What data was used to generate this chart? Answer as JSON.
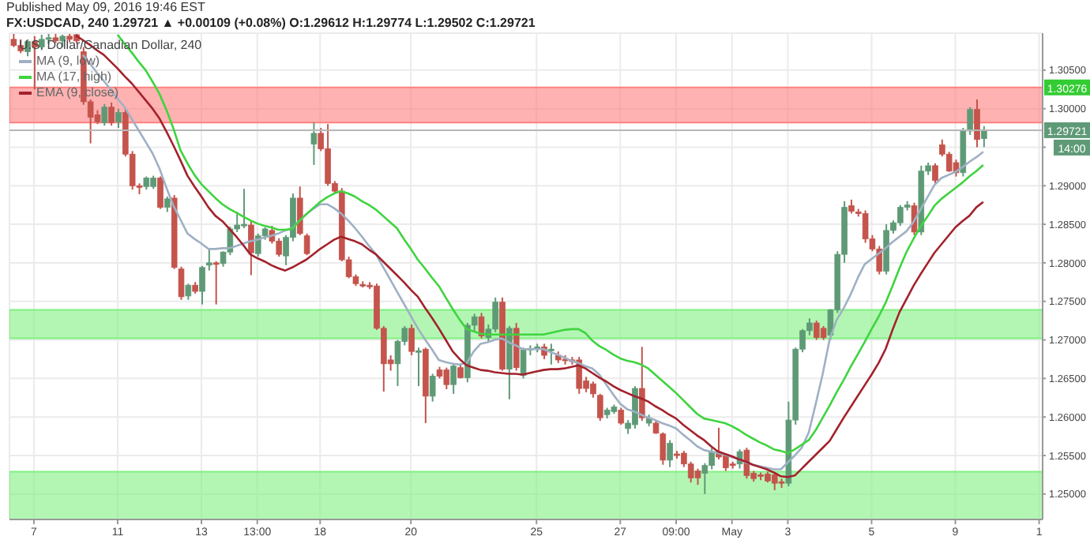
{
  "chart_data": {
    "type": "candlestick",
    "title": "FX:USDCAD, 240 1.29721 ▲ +0.00109 (+0.08%) O:1.29612 H:1.29774 L:1.29502 C:1.29721",
    "legend_title": "U.S. Dollar/Canadian Dollar, 240",
    "annotations": [
      "Published May 09, 2016 19:46 EST",
      "14:00"
    ],
    "categories": [
      null,
      null,
      null,
      "7",
      null,
      null,
      null,
      null,
      null,
      null,
      null,
      null,
      null,
      null,
      null,
      "11",
      null,
      null,
      null,
      null,
      null,
      null,
      null,
      null,
      null,
      null,
      null,
      "13",
      null,
      null,
      null,
      null,
      null,
      null,
      null,
      "13:00",
      null,
      null,
      null,
      null,
      null,
      null,
      null,
      null,
      "18",
      null,
      null,
      null,
      null,
      null,
      null,
      null,
      null,
      null,
      null,
      null,
      null,
      "20",
      null,
      null,
      null,
      null,
      null,
      null,
      null,
      null,
      null,
      null,
      null,
      null,
      null,
      null,
      null,
      null,
      null,
      "25",
      null,
      null,
      null,
      null,
      null,
      null,
      null,
      null,
      null,
      null,
      null,
      "27",
      null,
      null,
      null,
      null,
      null,
      null,
      null,
      "09:00",
      null,
      null,
      null,
      null,
      null,
      null,
      null,
      "May",
      null,
      null,
      null,
      null,
      null,
      null,
      null,
      "3",
      null,
      null,
      null,
      null,
      null,
      null,
      null,
      null,
      null,
      null,
      null,
      "5",
      null,
      null,
      null,
      null,
      null,
      null,
      null,
      null,
      null,
      null,
      null,
      "9",
      null,
      null,
      null,
      null,
      null,
      null,
      null,
      null,
      null,
      null,
      null,
      "1"
    ],
    "ohlc": [
      [
        1.309,
        1.3097,
        1.308,
        1.3082
      ],
      [
        1.3082,
        1.309,
        1.3072,
        1.3075
      ],
      [
        1.3074,
        1.309,
        1.3068,
        1.3087
      ],
      [
        1.3087,
        1.3094,
        1.3025,
        1.308
      ],
      [
        1.308,
        1.3096,
        1.3076,
        1.309
      ],
      [
        1.309,
        1.3097,
        1.3084,
        1.3092
      ],
      [
        1.3092,
        1.3097,
        1.3085,
        1.3088
      ],
      [
        1.3088,
        1.3096,
        1.308,
        1.3094
      ],
      [
        1.3094,
        1.3097,
        1.3086,
        1.309
      ],
      [
        1.3096,
        1.3097,
        1.3085,
        1.3088
      ],
      [
        1.3074,
        1.308,
        1.3005,
        1.3009
      ],
      [
        1.3009,
        1.3012,
        1.2955,
        1.2989
      ],
      [
        1.2992,
        1.2998,
        1.298,
        1.2983
      ],
      [
        1.2982,
        1.3006,
        1.2978,
        1.3002
      ],
      [
        1.3002,
        1.3008,
        1.2978,
        1.2982
      ],
      [
        1.2983,
        1.3,
        1.2975,
        1.2995
      ],
      [
        1.2995,
        1.3,
        1.2938,
        1.2941
      ],
      [
        1.2941,
        1.2945,
        1.2895,
        1.29
      ],
      [
        1.29,
        1.2903,
        1.2889,
        1.2899
      ],
      [
        1.2899,
        1.2912,
        1.2895,
        1.291
      ],
      [
        1.2899,
        1.2913,
        1.2896,
        1.291
      ],
      [
        1.291,
        1.2912,
        1.287,
        1.2872
      ],
      [
        1.2872,
        1.2886,
        1.2866,
        1.2883
      ],
      [
        1.2884,
        1.2888,
        1.2792,
        1.2794
      ],
      [
        1.2792,
        1.2795,
        1.2752,
        1.2756
      ],
      [
        1.2757,
        1.2773,
        1.2752,
        1.2771
      ],
      [
        1.2771,
        1.2775,
        1.276,
        1.2763
      ],
      [
        1.2763,
        1.2796,
        1.2746,
        1.2794
      ],
      [
        1.2797,
        1.2818,
        1.279,
        1.28
      ],
      [
        1.28,
        1.2802,
        1.2746,
        1.2799
      ],
      [
        1.2799,
        1.2815,
        1.2795,
        1.2814
      ],
      [
        1.2814,
        1.2847,
        1.281,
        1.2844
      ],
      [
        1.2844,
        1.2866,
        1.284,
        1.2849
      ],
      [
        1.2849,
        1.2896,
        1.2845,
        1.285
      ],
      [
        1.2849,
        1.2855,
        1.2784,
        1.2813
      ],
      [
        1.2812,
        1.2838,
        1.2808,
        1.2835
      ],
      [
        1.2835,
        1.2846,
        1.283,
        1.2844
      ],
      [
        1.2842,
        1.2848,
        1.2825,
        1.2828
      ],
      [
        1.2828,
        1.2832,
        1.2808,
        1.2811
      ],
      [
        1.2809,
        1.2836,
        1.2797,
        1.2833
      ],
      [
        1.2833,
        1.289,
        1.2828,
        1.2884
      ],
      [
        1.2884,
        1.2899,
        1.2836,
        1.2838
      ],
      [
        1.2835,
        1.2838,
        1.281,
        1.2812
      ],
      [
        1.2954,
        1.2982,
        1.2927,
        1.2968
      ],
      [
        1.2968,
        1.2975,
        1.2945,
        1.2948
      ],
      [
        1.2948,
        1.298,
        1.29,
        1.2903
      ],
      [
        1.2903,
        1.2906,
        1.289,
        1.2893
      ],
      [
        1.2893,
        1.2897,
        1.2802,
        1.2804
      ],
      [
        1.2804,
        1.2808,
        1.278,
        1.2782
      ],
      [
        1.2782,
        1.2785,
        1.277,
        1.2773
      ],
      [
        1.2772,
        1.2776,
        1.2768,
        1.2771
      ],
      [
        1.2771,
        1.2775,
        1.2766,
        1.277
      ],
      [
        1.277,
        1.2773,
        1.2713,
        1.2715
      ],
      [
        1.2715,
        1.2718,
        1.2633,
        1.2669
      ],
      [
        1.2674,
        1.268,
        1.266,
        1.2669
      ],
      [
        1.2669,
        1.27,
        1.264,
        1.2698
      ],
      [
        1.2698,
        1.2718,
        1.2693,
        1.2715
      ],
      [
        1.2715,
        1.272,
        1.268,
        1.2685
      ],
      [
        1.2685,
        1.269,
        1.264,
        1.2686
      ],
      [
        1.2688,
        1.269,
        1.2592,
        1.2627
      ],
      [
        1.2627,
        1.2656,
        1.262,
        1.2653
      ],
      [
        1.2661,
        1.2665,
        1.265,
        1.2653
      ],
      [
        1.2661,
        1.2664,
        1.2636,
        1.2642
      ],
      [
        1.2642,
        1.267,
        1.263,
        1.2666
      ],
      [
        1.2664,
        1.2668,
        1.265,
        1.2651
      ],
      [
        1.2651,
        1.2722,
        1.2645,
        1.2719
      ],
      [
        1.2719,
        1.2734,
        1.2712,
        1.273
      ],
      [
        1.273,
        1.2735,
        1.2702,
        1.2705
      ],
      [
        1.2703,
        1.272,
        1.2698,
        1.2714
      ],
      [
        1.2714,
        1.2755,
        1.271,
        1.2749
      ],
      [
        1.2749,
        1.2755,
        1.266,
        1.2662
      ],
      [
        1.2662,
        1.2718,
        1.2623,
        1.2715
      ],
      [
        1.2715,
        1.2722,
        1.266,
        1.2664
      ],
      [
        1.2654,
        1.269,
        1.265,
        1.2688
      ],
      [
        1.2688,
        1.2693,
        1.268,
        1.2689
      ],
      [
        1.2689,
        1.2695,
        1.2684,
        1.2691
      ],
      [
        1.2691,
        1.2695,
        1.2675,
        1.268
      ],
      [
        1.2686,
        1.2695,
        1.2668,
        1.2688
      ],
      [
        1.268,
        1.2685,
        1.267,
        1.2674
      ],
      [
        1.2675,
        1.268,
        1.2668,
        1.2674
      ],
      [
        1.2674,
        1.2678,
        1.2668,
        1.2673
      ],
      [
        1.2674,
        1.2678,
        1.263,
        1.2637
      ],
      [
        1.2647,
        1.2652,
        1.2632,
        1.2637
      ],
      [
        1.2643,
        1.2646,
        1.2625,
        1.263
      ],
      [
        1.2628,
        1.263,
        1.2595,
        1.2599
      ],
      [
        1.2603,
        1.2612,
        1.2598,
        1.2609
      ],
      [
        1.2607,
        1.2616,
        1.2604,
        1.2613
      ],
      [
        1.2609,
        1.2612,
        1.259,
        1.2592
      ],
      [
        1.2585,
        1.2596,
        1.2578,
        1.2592
      ],
      [
        1.259,
        1.264,
        1.2585,
        1.2637
      ],
      [
        1.2637,
        1.2691,
        1.2595,
        1.2599
      ],
      [
        1.2592,
        1.2603,
        1.2588,
        1.2599
      ],
      [
        1.2592,
        1.2596,
        1.2578,
        1.2579
      ],
      [
        1.2578,
        1.258,
        1.2538,
        1.2544
      ],
      [
        1.2544,
        1.257,
        1.2535,
        1.2566
      ],
      [
        1.2552,
        1.2556,
        1.2546,
        1.2551
      ],
      [
        1.2553,
        1.2556,
        1.2535,
        1.2539
      ],
      [
        1.2539,
        1.2542,
        1.2515,
        1.2521
      ],
      [
        1.253,
        1.2533,
        1.2512,
        1.2521
      ],
      [
        1.2527,
        1.254,
        1.25,
        1.2537
      ],
      [
        1.2537,
        1.256,
        1.2532,
        1.2555
      ],
      [
        1.2555,
        1.2586,
        1.2545,
        1.2548
      ],
      [
        1.255,
        1.2553,
        1.253,
        1.2534
      ],
      [
        1.2539,
        1.2542,
        1.2533,
        1.2538
      ],
      [
        1.2539,
        1.2558,
        1.2533,
        1.2555
      ],
      [
        1.2557,
        1.256,
        1.252,
        1.2524
      ],
      [
        1.2527,
        1.253,
        1.2516,
        1.252
      ],
      [
        1.2525,
        1.2528,
        1.2518,
        1.2524
      ],
      [
        1.2526,
        1.2529,
        1.2515,
        1.2517
      ],
      [
        1.2525,
        1.2528,
        1.2505,
        1.2514
      ],
      [
        1.2516,
        1.252,
        1.2508,
        1.2515
      ],
      [
        1.2514,
        1.262,
        1.251,
        1.2596
      ],
      [
        1.2596,
        1.269,
        1.259,
        1.2688
      ],
      [
        1.2688,
        1.2714,
        1.2684,
        1.2712
      ],
      [
        1.2712,
        1.2728,
        1.2706,
        1.2722
      ],
      [
        1.2722,
        1.2725,
        1.27,
        1.2703
      ],
      [
        1.2715,
        1.2718,
        1.27,
        1.2703
      ],
      [
        1.2706,
        1.274,
        1.27,
        1.2739
      ],
      [
        1.2739,
        1.2815,
        1.2735,
        1.2811
      ],
      [
        1.2811,
        1.288,
        1.28,
        1.2872
      ],
      [
        1.2874,
        1.2882,
        1.2864,
        1.2867
      ],
      [
        1.2866,
        1.287,
        1.286,
        1.2865
      ],
      [
        1.2864,
        1.2868,
        1.2826,
        1.2831
      ],
      [
        1.2831,
        1.2836,
        1.2815,
        1.2818
      ],
      [
        1.2818,
        1.2822,
        1.2785,
        1.2789
      ],
      [
        1.2789,
        1.285,
        1.2785,
        1.2842
      ],
      [
        1.2842,
        1.2855,
        1.2838,
        1.2852
      ],
      [
        1.2852,
        1.2875,
        1.2848,
        1.2872
      ],
      [
        1.2872,
        1.288,
        1.2868,
        1.2875
      ],
      [
        1.2874,
        1.2878,
        1.2836,
        1.284
      ],
      [
        1.284,
        1.2926,
        1.2836,
        1.2919
      ],
      [
        1.2919,
        1.293,
        1.2914,
        1.2926
      ],
      [
        1.2926,
        1.2929,
        1.2903,
        1.2907
      ],
      [
        1.2953,
        1.296,
        1.2938,
        1.2941
      ],
      [
        1.2941,
        1.2944,
        1.2918,
        1.2919
      ],
      [
        1.293,
        1.2934,
        1.2912,
        1.2917
      ],
      [
        1.2917,
        1.2975,
        1.2912,
        1.2971
      ],
      [
        1.2971,
        1.3002,
        1.2966,
        1.2999
      ],
      [
        1.2999,
        1.3012,
        1.295,
        1.296
      ],
      [
        1.29612,
        1.29774,
        1.29502,
        1.29721
      ],
      null,
      null,
      null,
      null,
      null,
      null,
      null,
      null
    ],
    "colors": [
      "#c4544c",
      "#c4544c",
      "#5f9a77",
      "#c4544c",
      "#5f9a77",
      "#5f9a77",
      "#c4544c",
      "#5f9a77",
      "#c4544c",
      "#c4544c",
      "#c4544c",
      "#c4544c",
      "#c4544c",
      "#5f9a77",
      "#c4544c",
      "#5f9a77",
      "#c4544c",
      "#c4544c",
      "#c4544c",
      "#5f9a77",
      "#5f9a77",
      "#c4544c",
      "#5f9a77",
      "#c4544c",
      "#c4544c",
      "#5f9a77",
      "#c4544c",
      "#5f9a77",
      "#5f9a77",
      "#c4544c",
      "#5f9a77",
      "#5f9a77",
      "#5f9a77",
      "#5f9a77",
      "#c4544c",
      "#5f9a77",
      "#5f9a77",
      "#c4544c",
      "#c4544c",
      "#5f9a77",
      "#5f9a77",
      "#c4544c",
      "#c4544c",
      "#5f9a77",
      "#c4544c",
      "#c4544c",
      "#c4544c",
      "#c4544c",
      "#c4544c",
      "#c4544c",
      "#c4544c",
      "#c4544c",
      "#c4544c",
      "#c4544c",
      "#c4544c",
      "#5f9a77",
      "#5f9a77",
      "#c4544c",
      "#5f9a77",
      "#c4544c",
      "#5f9a77",
      "#c4544c",
      "#c4544c",
      "#5f9a77",
      "#c4544c",
      "#5f9a77",
      "#5f9a77",
      "#c4544c",
      "#5f9a77",
      "#5f9a77",
      "#c4544c",
      "#5f9a77",
      "#c4544c",
      "#5f9a77",
      "#5f9a77",
      "#5f9a77",
      "#c4544c",
      "#5f9a77",
      "#c4544c",
      "#c4544c",
      "#c4544c",
      "#c4544c",
      "#c4544c",
      "#c4544c",
      "#c4544c",
      "#5f9a77",
      "#5f9a77",
      "#c4544c",
      "#5f9a77",
      "#5f9a77",
      "#c4544c",
      "#5f9a77",
      "#c4544c",
      "#c4544c",
      "#5f9a77",
      "#c4544c",
      "#c4544c",
      "#c4544c",
      "#c4544c",
      "#5f9a77",
      "#5f9a77",
      "#c4544c",
      "#c4544c",
      "#c4544c",
      "#5f9a77",
      "#c4544c",
      "#c4544c",
      "#c4544c",
      "#c4544c",
      "#c4544c",
      "#c4544c",
      "#5f9a77",
      "#5f9a77",
      "#5f9a77",
      "#5f9a77",
      "#c4544c",
      "#c4544c",
      "#5f9a77",
      "#5f9a77",
      "#5f9a77",
      "#c4544c",
      "#c4544c",
      "#c4544c",
      "#c4544c",
      "#c4544c",
      "#5f9a77",
      "#5f9a77",
      "#5f9a77",
      "#5f9a77",
      "#c4544c",
      "#5f9a77",
      "#5f9a77",
      "#c4544c",
      "#c4544c",
      "#c4544c",
      "#c4544c",
      "#5f9a77",
      "#5f9a77",
      "#c4544c",
      "#5f9a77",
      null,
      null,
      null,
      null,
      null,
      null,
      null,
      null
    ],
    "series": [
      {
        "name": "MA (9, low)",
        "type": "line",
        "color": "#9fb0c4",
        "values": [
          null,
          null,
          null,
          null,
          null,
          null,
          null,
          null,
          null,
          null,
          1.307,
          1.3059,
          1.3047,
          1.3036,
          1.3025,
          1.3013,
          1.3002,
          1.2987,
          1.2972,
          1.2957,
          1.2942,
          1.2922,
          1.2897,
          1.2874,
          1.2856,
          1.2838,
          1.2831,
          1.2825,
          1.2818,
          1.2818,
          1.2819,
          1.2819,
          1.2822,
          1.2825,
          1.2828,
          1.283,
          1.2833,
          1.2835,
          1.2838,
          1.2842,
          1.2845,
          1.2854,
          1.2863,
          1.287,
          1.2876,
          1.2876,
          1.2871,
          1.2864,
          1.2855,
          1.2845,
          1.2834,
          1.2822,
          1.2811,
          1.2795,
          1.2779,
          1.2763,
          1.2747,
          1.2731,
          1.2715,
          1.2701,
          1.2688,
          1.2674,
          1.2671,
          1.2669,
          1.2668,
          1.267,
          1.2685,
          1.2695,
          1.2697,
          1.27,
          1.2702,
          1.2697,
          1.2693,
          1.2688,
          1.2688,
          1.2688,
          1.2688,
          1.2684,
          1.2681,
          1.2677,
          1.2673,
          1.267,
          1.2666,
          1.2663,
          1.2655,
          1.2642,
          1.2629,
          1.2617,
          1.261,
          1.2607,
          1.2603,
          1.2599,
          1.2596,
          1.2592,
          1.2589,
          1.2585,
          1.2577,
          1.257,
          1.2562,
          1.2557,
          1.2555,
          1.2553,
          1.2551,
          1.2548,
          1.2545,
          1.2541,
          1.2538,
          1.2536,
          1.2534,
          1.2532,
          1.2532,
          1.2541,
          1.255,
          1.256,
          1.258,
          1.2617,
          1.2656,
          1.2701,
          1.2726,
          1.2741,
          1.2759,
          1.278,
          1.2798,
          1.2805,
          1.2812,
          1.2819,
          1.2827,
          1.2834,
          1.2841,
          1.2853,
          1.2869,
          1.2885,
          1.2901,
          1.291,
          1.2914,
          1.2918,
          1.2924,
          1.2931,
          1.2937,
          1.2944,
          null,
          null,
          null,
          null,
          null,
          null,
          null,
          null
        ]
      },
      {
        "name": "MA (17, high)",
        "type": "line",
        "color": "#3fd43f",
        "values": [
          null,
          null,
          null,
          null,
          null,
          null,
          null,
          null,
          null,
          null,
          null,
          null,
          null,
          null,
          null,
          1.3096,
          1.3084,
          1.3073,
          1.3061,
          1.305,
          1.3035,
          1.3019,
          1.2998,
          1.2974,
          1.2946,
          1.2929,
          1.2914,
          1.2902,
          1.2893,
          1.2884,
          1.2876,
          1.287,
          1.2865,
          1.286,
          1.2855,
          1.2851,
          1.2848,
          1.2846,
          1.2843,
          1.2843,
          1.2844,
          1.2854,
          1.2863,
          1.2871,
          1.2879,
          1.2885,
          1.289,
          1.2893,
          1.289,
          1.2886,
          1.288,
          1.2875,
          1.2869,
          1.2861,
          1.2853,
          1.2845,
          1.2831,
          1.2818,
          1.2804,
          1.2793,
          1.2781,
          1.277,
          1.2755,
          1.274,
          1.2726,
          1.2714,
          1.2711,
          1.2708,
          1.2707,
          1.2707,
          1.2707,
          1.2707,
          1.2707,
          1.2707,
          1.2707,
          1.2707,
          1.2707,
          1.2709,
          1.2711,
          1.2713,
          1.2714,
          1.2714,
          1.2709,
          1.2699,
          1.2692,
          1.2687,
          1.2681,
          1.2676,
          1.2673,
          1.2671,
          1.2668,
          1.2663,
          1.2655,
          1.2647,
          1.2639,
          1.2631,
          1.2622,
          1.2613,
          1.2604,
          1.2598,
          1.2596,
          1.2594,
          1.2592,
          1.2588,
          1.2583,
          1.2577,
          1.2572,
          1.2567,
          1.2563,
          1.2558,
          1.2556,
          1.2553,
          1.2558,
          1.2564,
          1.257,
          1.2583,
          1.2599,
          1.2615,
          1.2632,
          1.2648,
          1.2665,
          1.2681,
          1.2697,
          1.2714,
          1.273,
          1.2748,
          1.277,
          1.2793,
          1.2814,
          1.2831,
          1.2847,
          1.286,
          1.2874,
          1.2883,
          1.289,
          1.2897,
          1.2904,
          1.2912,
          1.2919,
          1.2927,
          null,
          null,
          null,
          null,
          null,
          null,
          null,
          null
        ]
      },
      {
        "name": "EMA (9, close)",
        "type": "line",
        "color": "#a3222c",
        "values": [
          null,
          null,
          null,
          null,
          null,
          null,
          null,
          null,
          null,
          1.3095,
          1.3089,
          1.3083,
          1.3076,
          1.307,
          1.3061,
          1.3052,
          1.3042,
          1.3033,
          1.3022,
          1.3011,
          1.3,
          1.2987,
          1.297,
          1.2952,
          1.2933,
          1.2913,
          1.2899,
          1.2886,
          1.2872,
          1.2861,
          1.2854,
          1.2844,
          1.2834,
          1.2823,
          1.2811,
          1.2806,
          1.2802,
          1.2797,
          1.2793,
          1.279,
          1.2794,
          1.2799,
          1.2804,
          1.2811,
          1.2818,
          1.2824,
          1.283,
          1.2834,
          1.2831,
          1.2828,
          1.2824,
          1.2817,
          1.2811,
          1.2802,
          1.2793,
          1.2784,
          1.2775,
          1.2765,
          1.2756,
          1.2742,
          1.2729,
          1.2715,
          1.27,
          1.2685,
          1.2675,
          1.2667,
          1.2664,
          1.2661,
          1.266,
          1.2658,
          1.2657,
          1.2656,
          1.2656,
          1.2655,
          1.2657,
          1.2659,
          1.2661,
          1.2662,
          1.2662,
          1.2663,
          1.2665,
          1.2667,
          1.2663,
          1.2657,
          1.2651,
          1.2646,
          1.264,
          1.2635,
          1.2631,
          1.2627,
          1.2624,
          1.262,
          1.2614,
          1.2609,
          1.2603,
          1.2598,
          1.259,
          1.2583,
          1.2576,
          1.257,
          1.2562,
          1.2555,
          1.2552,
          1.2549,
          1.2545,
          1.2542,
          1.2538,
          1.2535,
          1.2532,
          1.2528,
          1.2523,
          1.2522,
          1.2524,
          1.2533,
          1.2542,
          1.2551,
          1.256,
          1.2569,
          1.2584,
          1.2599,
          1.2613,
          1.2627,
          1.2641,
          1.2655,
          1.267,
          1.2688,
          1.2713,
          1.2736,
          1.2753,
          1.277,
          1.2785,
          1.2799,
          1.2813,
          1.2824,
          1.2835,
          1.2846,
          1.2854,
          1.2861,
          1.2872,
          1.2879,
          null,
          null,
          null,
          null,
          null,
          null,
          null,
          null
        ]
      }
    ],
    "ylim": [
      1.2467,
      1.3098
    ],
    "yticks": [
      {
        "value": 1.25,
        "label": "1.25000"
      },
      {
        "value": 1.255,
        "label": "1.25500"
      },
      {
        "value": 1.26,
        "label": "1.26000"
      },
      {
        "value": 1.265,
        "label": "1.26500"
      },
      {
        "value": 1.27,
        "label": "1.27000"
      },
      {
        "value": 1.275,
        "label": "1.27500"
      },
      {
        "value": 1.28,
        "label": "1.28000"
      },
      {
        "value": 1.285,
        "label": "1.28500"
      },
      {
        "value": 1.29,
        "label": "1.29000"
      },
      {
        "value": 1.295,
        "label": null
      },
      {
        "value": 1.3,
        "label": "1.30000"
      },
      {
        "value": 1.305,
        "label": "1.30500"
      }
    ],
    "ref_lines": [
      {
        "axis": "y",
        "value": 1.29721,
        "label": "1.29721",
        "color": "#b8b8b8"
      }
    ],
    "bands": [
      {
        "axis": "y",
        "from": 1.2982,
        "to": 1.30276,
        "label": "1.30276",
        "color": "#ff7f7f"
      },
      {
        "axis": "y",
        "from": 1.2702,
        "to": 1.2739,
        "color": "#80f080"
      },
      {
        "axis": "y",
        "from": 1.2467,
        "to": 1.2529,
        "color": "#80f080"
      }
    ],
    "grid": true,
    "legend": "top left",
    "marker": "none",
    "line_style": "solid"
  }
}
